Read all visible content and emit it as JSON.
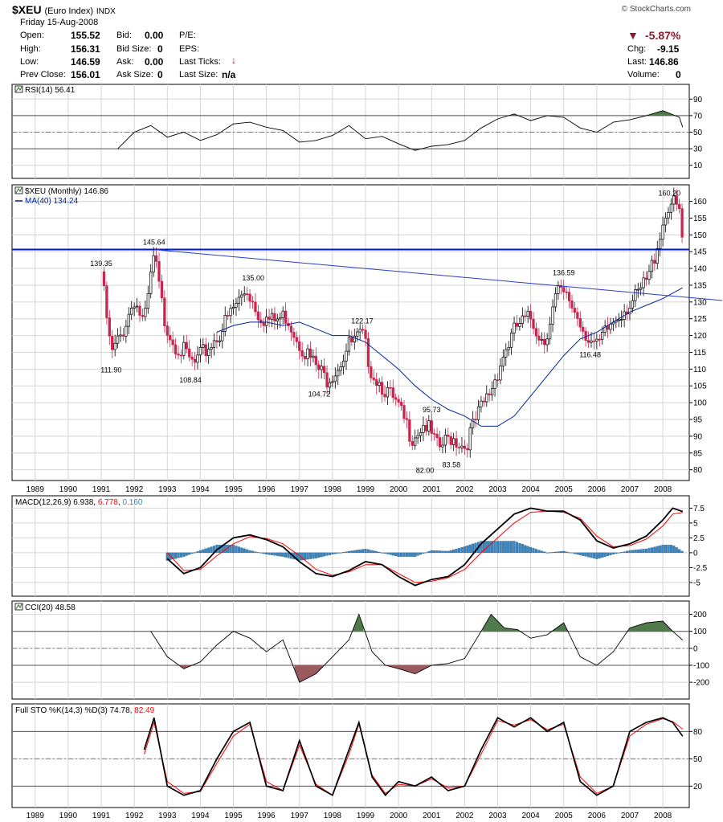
{
  "header": {
    "symbol": "$XEU",
    "name": "(Euro Index)",
    "exchange": "INDX",
    "source": "© StockCharts.com",
    "date": "Friday  15-Aug-2008",
    "open_label": "Open:",
    "open": "155.52",
    "high_label": "High:",
    "high": "156.31",
    "low_label": "Low:",
    "low": "146.59",
    "prevclose_label": "Prev Close:",
    "prevclose": "156.01",
    "bid_label": "Bid:",
    "bid": "0.00",
    "bidsize_label": "Bid Size:",
    "bidsize": "0",
    "ask_label": "Ask:",
    "ask": "0.00",
    "asksize_label": "Ask Size:",
    "asksize": "0",
    "pe_label": "P/E:",
    "eps_label": "EPS:",
    "lastticks_label": "Last Ticks:",
    "lastsize_label": "Last Size:",
    "lastsize": "n/a",
    "pct_change": "-5.87%",
    "chg_label": "Chg:",
    "chg": "-9.15",
    "last_label": "Last:",
    "last": "146.86",
    "volume_label": "Volume:",
    "volume": "0",
    "down_color": "#8b1a2e"
  },
  "chart_data": [
    {
      "type": "line",
      "panel": "RSI",
      "legend": "RSI(14) 56.41",
      "yticks": [
        90,
        70,
        50,
        30,
        10
      ],
      "ylim": [
        0,
        100
      ],
      "levels": [
        70,
        50,
        30
      ],
      "x": [
        1991.5,
        1992.0,
        1992.5,
        1993.0,
        1993.5,
        1994.0,
        1994.5,
        1995.0,
        1995.5,
        1996.0,
        1996.5,
        1997.0,
        1997.5,
        1998.0,
        1998.5,
        1999.0,
        1999.5,
        2000.0,
        2000.5,
        2001.0,
        2001.5,
        2002.0,
        2002.5,
        2003.0,
        2003.5,
        2004.0,
        2004.5,
        2005.0,
        2005.5,
        2006.0,
        2006.5,
        2007.0,
        2007.5,
        2008.0,
        2008.5,
        2008.6
      ],
      "values": [
        30,
        50,
        58,
        44,
        50,
        40,
        47,
        60,
        62,
        56,
        52,
        38,
        40,
        46,
        58,
        42,
        45,
        36,
        28,
        33,
        35,
        40,
        55,
        66,
        72,
        64,
        70,
        68,
        55,
        50,
        62,
        65,
        70,
        76,
        68,
        56
      ]
    },
    {
      "type": "candlestick",
      "panel": "price",
      "legend": "$XEU (Monthly) 146.86",
      "ma_legend": "MA(40) 134.24",
      "yticks": [
        160,
        155,
        150,
        145,
        140,
        135,
        130,
        125,
        120,
        115,
        110,
        105,
        100,
        95,
        90,
        85,
        80
      ],
      "ylim": [
        78,
        163
      ],
      "xticks": [
        "1989",
        "1990",
        "1991",
        "1992",
        "1993",
        "1994",
        "1995",
        "1996",
        "1997",
        "1998",
        "1999",
        "2000",
        "2001",
        "2002",
        "2003",
        "2004",
        "2005",
        "2006",
        "2007",
        "2008"
      ],
      "close_x": [
        1991.0,
        1991.3,
        1991.6,
        1992.0,
        1992.3,
        1992.6,
        1992.9,
        1993.2,
        1993.5,
        1993.8,
        1994.2,
        1994.6,
        1995.0,
        1995.4,
        1995.8,
        1996.2,
        1996.6,
        1997.0,
        1997.4,
        1997.8,
        1998.1,
        1998.5,
        1998.9,
        1999.2,
        1999.6,
        2000.0,
        2000.4,
        2000.8,
        2001.2,
        2001.6,
        2002.0,
        2002.4,
        2002.8,
        2003.2,
        2003.6,
        2004.0,
        2004.4,
        2004.8,
        2005.2,
        2005.6,
        2006.0,
        2006.4,
        2006.8,
        2007.2,
        2007.6,
        2007.9,
        2008.2,
        2008.5,
        2008.6
      ],
      "close": [
        139,
        114,
        120,
        131,
        123,
        144,
        125,
        118,
        115,
        111,
        116,
        121,
        128,
        134,
        126,
        124,
        126,
        118,
        112,
        107,
        110,
        117,
        120,
        109,
        104,
        98,
        90,
        94,
        86,
        90,
        87,
        96,
        104,
        115,
        123,
        125,
        118,
        133,
        130,
        122,
        116,
        123,
        128,
        131,
        138,
        150,
        160,
        157,
        147
      ],
      "annotations": [
        {
          "x": 1991.0,
          "y": 139.35,
          "label": "139.35",
          "pos": "above"
        },
        {
          "x": 1991.3,
          "y": 111.9,
          "label": "111.90",
          "pos": "below"
        },
        {
          "x": 1992.6,
          "y": 145.64,
          "label": "145.64",
          "pos": "above"
        },
        {
          "x": 1993.7,
          "y": 108.84,
          "label": "108.84",
          "pos": "below"
        },
        {
          "x": 1995.6,
          "y": 135.0,
          "label": "135.00",
          "pos": "above"
        },
        {
          "x": 1997.6,
          "y": 104.72,
          "label": "104.72",
          "pos": "below"
        },
        {
          "x": 1998.9,
          "y": 122.17,
          "label": "122.17",
          "pos": "above"
        },
        {
          "x": 2001.0,
          "y": 95.73,
          "label": "95.73",
          "pos": "above"
        },
        {
          "x": 2000.8,
          "y": 82.0,
          "label": "82.00",
          "pos": "below"
        },
        {
          "x": 2001.6,
          "y": 83.58,
          "label": "83.58",
          "pos": "below"
        },
        {
          "x": 2005.0,
          "y": 136.59,
          "label": "136.59",
          "pos": "above"
        },
        {
          "x": 2005.8,
          "y": 116.48,
          "label": "116.48",
          "pos": "below"
        },
        {
          "x": 2008.2,
          "y": 160.2,
          "label": "160.20",
          "pos": "above"
        }
      ],
      "ma_x": [
        1994.5,
        1995.0,
        1995.5,
        1996.0,
        1996.5,
        1997.0,
        1997.5,
        1998.0,
        1998.5,
        1999.0,
        1999.5,
        2000.0,
        2000.5,
        2001.0,
        2001.5,
        2002.0,
        2002.5,
        2003.0,
        2003.5,
        2004.0,
        2004.5,
        2005.0,
        2005.5,
        2006.0,
        2006.5,
        2007.0,
        2007.5,
        2008.0,
        2008.6
      ],
      "ma": [
        121,
        123,
        124,
        124,
        123,
        124,
        122,
        120,
        120,
        118,
        114,
        110,
        105,
        101,
        98,
        96,
        93,
        93,
        96,
        102,
        108,
        114,
        119,
        121,
        124,
        127,
        129,
        131,
        134.24
      ],
      "resistance_level": 145.64,
      "trendline": [
        [
          1992.6,
          145.6
        ],
        [
          2008.6,
          131.5
        ]
      ]
    },
    {
      "type": "line",
      "panel": "MACD",
      "legend": "MACD(12,26,9)",
      "legend_values": [
        "6.938",
        "6.778",
        "0.160"
      ],
      "yticks": [
        7.5,
        5.0,
        2.5,
        0.0,
        -2.5,
        -5.0
      ],
      "ylim": [
        -6.5,
        8.5
      ],
      "x": [
        1993.0,
        1993.5,
        1994.0,
        1994.5,
        1995.0,
        1995.5,
        1996.0,
        1996.5,
        1997.0,
        1997.5,
        1998.0,
        1998.5,
        1999.0,
        1999.5,
        2000.0,
        2000.5,
        2001.0,
        2001.5,
        2002.0,
        2002.5,
        2003.0,
        2003.5,
        2004.0,
        2004.5,
        2005.0,
        2005.5,
        2006.0,
        2006.5,
        2007.0,
        2007.5,
        2008.0,
        2008.3,
        2008.6
      ],
      "macd": [
        -1.0,
        -3.5,
        -2.5,
        0.5,
        2.5,
        3.0,
        2.2,
        1.0,
        -1.5,
        -3.5,
        -4.0,
        -3.0,
        -1.5,
        -2.0,
        -4.0,
        -5.5,
        -4.5,
        -4.0,
        -2.0,
        1.5,
        4.0,
        6.5,
        7.5,
        7.0,
        7.0,
        5.5,
        2.0,
        0.8,
        1.5,
        2.8,
        5.5,
        7.5,
        6.938
      ],
      "signal": [
        0.0,
        -3.0,
        -2.8,
        -0.5,
        1.5,
        2.7,
        2.4,
        1.5,
        -0.5,
        -2.8,
        -3.8,
        -3.2,
        -2.0,
        -2.0,
        -3.5,
        -5.0,
        -4.8,
        -4.2,
        -2.8,
        0.0,
        2.5,
        5.0,
        6.8,
        7.0,
        6.8,
        5.8,
        2.8,
        1.0,
        1.2,
        2.3,
        4.5,
        6.5,
        6.778
      ]
    },
    {
      "type": "line",
      "panel": "CCI",
      "legend": "CCI(20) 48.58",
      "yticks": [
        200,
        100,
        0,
        -100,
        -200
      ],
      "ylim": [
        -280,
        250
      ],
      "levels": [
        100,
        0,
        -100
      ],
      "x": [
        1992.5,
        1993.0,
        1993.5,
        1994.0,
        1994.5,
        1995.0,
        1995.5,
        1996.0,
        1996.5,
        1997.0,
        1997.5,
        1998.0,
        1998.5,
        1998.8,
        1999.2,
        1999.6,
        2000.0,
        2000.5,
        2001.0,
        2001.5,
        2002.0,
        2002.5,
        2002.8,
        2003.2,
        2003.6,
        2004.0,
        2004.5,
        2005.0,
        2005.5,
        2006.0,
        2006.5,
        2007.0,
        2007.5,
        2008.0,
        2008.3,
        2008.6
      ],
      "values": [
        100,
        -50,
        -120,
        -80,
        20,
        100,
        60,
        -20,
        50,
        -200,
        -150,
        -50,
        50,
        200,
        -20,
        -100,
        -120,
        -150,
        -100,
        -90,
        -60,
        100,
        200,
        120,
        110,
        60,
        80,
        150,
        -50,
        -100,
        -20,
        120,
        150,
        160,
        100,
        48.58
      ]
    },
    {
      "type": "line",
      "panel": "STO",
      "legend": "Full STO %K(14,3) %D(3)",
      "legend_values": [
        "74.78",
        "82.49"
      ],
      "yticks": [
        80,
        50,
        20
      ],
      "ylim": [
        0,
        105
      ],
      "levels": [
        80,
        50,
        20
      ],
      "x": [
        1992.3,
        1992.6,
        1993.0,
        1993.5,
        1994.0,
        1994.5,
        1995.0,
        1995.5,
        1996.0,
        1996.5,
        1997.0,
        1997.5,
        1998.0,
        1998.5,
        1998.8,
        1999.2,
        1999.6,
        2000.0,
        2000.5,
        2001.0,
        2001.5,
        2002.0,
        2002.5,
        2003.0,
        2003.5,
        2004.0,
        2004.5,
        2005.0,
        2005.5,
        2006.0,
        2006.5,
        2007.0,
        2007.5,
        2008.0,
        2008.3,
        2008.6
      ],
      "k": [
        60,
        95,
        20,
        10,
        15,
        50,
        80,
        90,
        20,
        15,
        70,
        20,
        10,
        60,
        90,
        30,
        10,
        25,
        20,
        30,
        15,
        20,
        60,
        95,
        85,
        95,
        80,
        90,
        25,
        10,
        20,
        80,
        90,
        95,
        90,
        74.78
      ],
      "d": [
        55,
        90,
        25,
        12,
        14,
        45,
        75,
        88,
        25,
        15,
        65,
        22,
        10,
        55,
        88,
        32,
        12,
        22,
        20,
        28,
        18,
        20,
        55,
        92,
        87,
        93,
        82,
        88,
        30,
        12,
        20,
        75,
        88,
        94,
        91,
        82.49
      ]
    }
  ],
  "colors": {
    "up": "#000000",
    "down": "#c8264e",
    "ma": "#00259c",
    "resistance": "#0018c8",
    "trendline": "#2a3cc8",
    "macd_signal": "#ff0000",
    "histogram": "#3a86c0",
    "fill_green": "#4f7a4a",
    "fill_red": "#9a5a5e",
    "grid": "#d4d4d4"
  }
}
